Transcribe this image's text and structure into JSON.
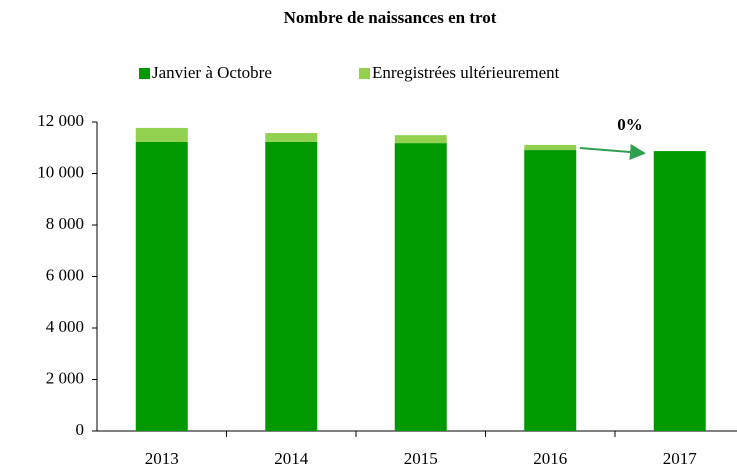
{
  "chart_data": {
    "type": "stacked_bar",
    "title": "Nombre de naissances en trot",
    "categories": [
      "2013",
      "2014",
      "2015",
      "2016",
      "2017"
    ],
    "series": [
      {
        "name": "Janvier à Octobre",
        "color": "#009900",
        "values": [
          11230,
          11230,
          11180,
          10910,
          10870
        ]
      },
      {
        "name": "Enregistrées ultérieurement",
        "color": "#92d050",
        "values": [
          540,
          340,
          310,
          200,
          0
        ]
      }
    ],
    "ylim": [
      0,
      12000
    ],
    "yticks": [
      0,
      {
        "value": 2000,
        "label": "2 000"
      },
      {
        "value": 4000,
        "label": "4 000"
      },
      {
        "value": 6000,
        "label": "6 000"
      },
      {
        "value": 8000,
        "label": "8 000"
      },
      {
        "value": 10000,
        "label": "10 000"
      },
      {
        "value": 12000,
        "label": "12 000"
      }
    ],
    "annotation": {
      "text": "0%",
      "color": "#2e9e4f"
    },
    "legend": "top",
    "grid": false
  }
}
